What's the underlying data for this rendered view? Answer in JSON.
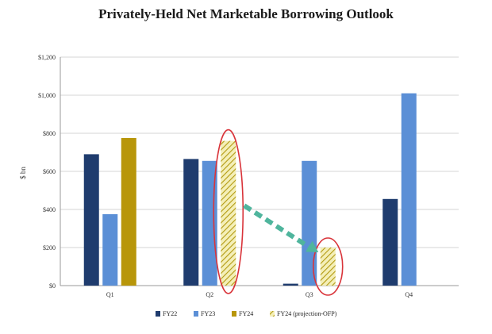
{
  "chart_data": {
    "type": "bar",
    "title": "Privately-Held Net Marketable Borrowing Outlook",
    "ylabel": "$ bn",
    "xlabel": "",
    "ylim": [
      0,
      1200
    ],
    "yticks": [
      0,
      200,
      400,
      600,
      800,
      1000,
      1200
    ],
    "ytick_labels": [
      "$0",
      "$200",
      "$400",
      "$600",
      "$800",
      "$1,000",
      "$1,200"
    ],
    "categories": [
      "Q1",
      "Q2",
      "Q3",
      "Q4"
    ],
    "grid": true,
    "legend_position": "bottom",
    "series": [
      {
        "name": "FY22",
        "color": "#1f3c6e",
        "pattern": "solid",
        "values": [
          690,
          665,
          10,
          455
        ]
      },
      {
        "name": "FY23",
        "color": "#5b8fd6",
        "pattern": "solid",
        "values": [
          375,
          655,
          655,
          1010
        ]
      },
      {
        "name": "FY24",
        "color": "#b8960a",
        "pattern": "solid",
        "values": [
          775,
          null,
          null,
          null
        ]
      },
      {
        "name": "FY24 (projection-OFP)",
        "color": "#c9b422",
        "pattern": "hatched",
        "values": [
          null,
          760,
          200,
          null
        ]
      }
    ],
    "annotations": {
      "ellipse_color": "#d9343a",
      "arrow_color": "#4fb59d",
      "highlighted": [
        "Q2 FY24 (projection-OFP)",
        "Q3 FY24 (projection-OFP)"
      ]
    }
  }
}
